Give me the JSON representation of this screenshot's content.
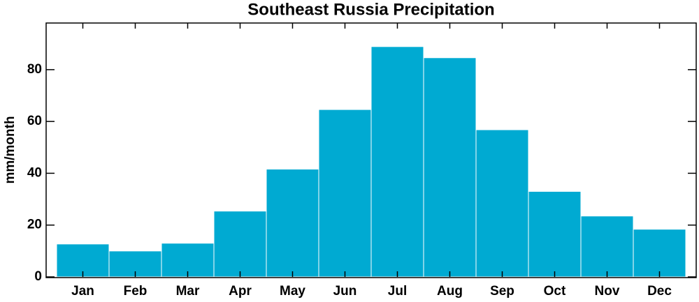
{
  "chart_data": {
    "type": "bar",
    "title": "Southeast Russia Precipitation",
    "y_label": "mm/month",
    "categories": [
      "Jan",
      "Feb",
      "Mar",
      "Apr",
      "May",
      "Jun",
      "Jul",
      "Aug",
      "Sep",
      "Oct",
      "Nov",
      "Dec"
    ],
    "values": [
      12.7,
      10,
      13,
      25.4,
      41.6,
      64.6,
      88.9,
      84.6,
      56.8,
      33,
      23.5,
      18.4
    ],
    "color": "#00aad2",
    "ylim": [
      0,
      98
    ],
    "yticks": [
      0,
      20,
      40,
      60,
      80
    ],
    "grid": false
  }
}
